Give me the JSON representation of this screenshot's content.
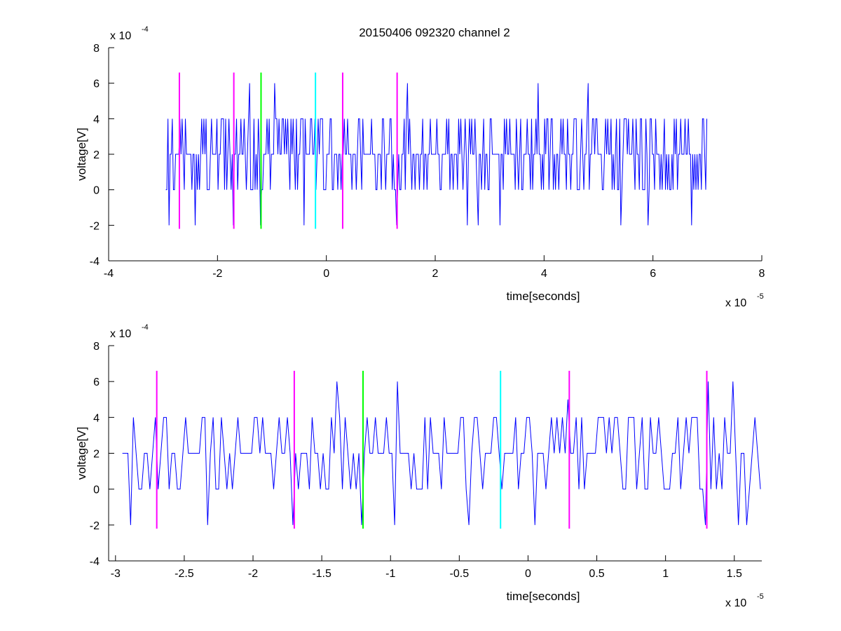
{
  "figure_title": "20150406 092320 channel 2",
  "colors": {
    "signal": "#0000ff",
    "magenta": "#ff00ff",
    "green": "#00ff00",
    "cyan": "#00ffff",
    "axis": "#000000",
    "background": "#ffffff"
  },
  "chart_data": [
    {
      "type": "line",
      "title": "20150406 092320 channel 2",
      "xlabel": "time[seconds]",
      "ylabel": "voltage[V]",
      "x_exponent": "x 10",
      "x_exponent_power": "-5",
      "y_exponent": "x 10",
      "y_exponent_power": "-4",
      "xlim": [
        -4,
        8
      ],
      "ylim": [
        -4,
        8
      ],
      "x_unit_scale": "1e-5",
      "y_unit_scale": "1e-4",
      "xticks": [
        "-4",
        "-2",
        "0",
        "2",
        "4",
        "6",
        "8"
      ],
      "yticks": [
        "-4",
        "-2",
        "0",
        "2",
        "4",
        "6",
        "8"
      ],
      "grid": false,
      "series": [
        {
          "x_range": [
            -2.95,
            7.0
          ],
          "sample_step": 0.02,
          "levels": [
            -2,
            0,
            2,
            4,
            6
          ],
          "typical_values": [
            0,
            2,
            4
          ],
          "spikes": [
            {
              "x": -2.9,
              "y": -2
            },
            {
              "x": -2.4,
              "y": -2
            },
            {
              "x": -1.7,
              "y": -2
            },
            {
              "x": -1.4,
              "y": 6
            },
            {
              "x": -1.2,
              "y": -2
            },
            {
              "x": -0.95,
              "y": 6
            },
            {
              "x": -0.4,
              "y": -2
            },
            {
              "x": 1.3,
              "y": 6
            },
            {
              "x": 1.3,
              "y": -2
            },
            {
              "x": 1.5,
              "y": 6
            },
            {
              "x": 2.6,
              "y": -2
            },
            {
              "x": 2.8,
              "y": -2
            },
            {
              "x": 3.2,
              "y": -2
            },
            {
              "x": 3.9,
              "y": 6
            },
            {
              "x": 4.8,
              "y": 6
            },
            {
              "x": 5.4,
              "y": -2
            },
            {
              "x": 5.9,
              "y": -2
            },
            {
              "x": 6.7,
              "y": -2
            }
          ]
        }
      ],
      "markers": [
        {
          "x": -2.7,
          "color": "magenta",
          "ymin": -2.2,
          "ymax": 6.6
        },
        {
          "x": -1.7,
          "color": "magenta",
          "ymin": -2.2,
          "ymax": 6.6
        },
        {
          "x": -1.2,
          "color": "green",
          "ymin": -2.2,
          "ymax": 6.6
        },
        {
          "x": -0.2,
          "color": "cyan",
          "ymin": -2.2,
          "ymax": 6.6
        },
        {
          "x": 0.3,
          "color": "magenta",
          "ymin": -2.2,
          "ymax": 6.6
        },
        {
          "x": 1.3,
          "color": "magenta",
          "ymin": -2.2,
          "ymax": 6.6
        }
      ]
    },
    {
      "type": "line",
      "title": "",
      "xlabel": "time[seconds]",
      "ylabel": "voltage[V]",
      "x_exponent": "x 10",
      "x_exponent_power": "-5",
      "y_exponent": "x 10",
      "y_exponent_power": "-4",
      "xlim": [
        -3.05,
        1.7
      ],
      "ylim": [
        -4,
        8
      ],
      "x_unit_scale": "1e-5",
      "y_unit_scale": "1e-4",
      "xticks": [
        "-3",
        "-2.5",
        "-2",
        "-1.5",
        "-1",
        "-0.5",
        "0",
        "0.5",
        "1",
        "1.5"
      ],
      "yticks": [
        "-4",
        "-2",
        "0",
        "2",
        "4",
        "6",
        "8"
      ],
      "grid": false,
      "series": [
        {
          "x_range": [
            -2.95,
            1.7
          ],
          "sample_step": 0.02,
          "levels": [
            -2,
            0,
            2,
            4,
            6
          ],
          "typical_values": [
            0,
            2,
            4
          ],
          "spikes": [
            {
              "x": -2.9,
              "y": -2
            },
            {
              "x": -2.33,
              "y": -2
            },
            {
              "x": -1.7,
              "y": -2
            },
            {
              "x": -1.38,
              "y": 6
            },
            {
              "x": -1.2,
              "y": -2
            },
            {
              "x": -0.97,
              "y": -2
            },
            {
              "x": -0.94,
              "y": 6
            },
            {
              "x": -0.43,
              "y": -2
            },
            {
              "x": 0.05,
              "y": -2
            },
            {
              "x": 0.3,
              "y": 5
            },
            {
              "x": 1.3,
              "y": -2
            },
            {
              "x": 1.32,
              "y": 6
            },
            {
              "x": 1.5,
              "y": 6
            },
            {
              "x": 1.54,
              "y": -2
            },
            {
              "x": 1.6,
              "y": -2
            }
          ]
        }
      ],
      "markers": [
        {
          "x": -2.7,
          "color": "magenta",
          "ymin": -2.2,
          "ymax": 6.6
        },
        {
          "x": -1.7,
          "color": "magenta",
          "ymin": -2.2,
          "ymax": 6.6
        },
        {
          "x": -1.2,
          "color": "green",
          "ymin": -2.2,
          "ymax": 6.6
        },
        {
          "x": -0.2,
          "color": "cyan",
          "ymin": -2.2,
          "ymax": 6.6
        },
        {
          "x": 0.3,
          "color": "magenta",
          "ymin": -2.2,
          "ymax": 6.6
        },
        {
          "x": 1.3,
          "color": "magenta",
          "ymin": -2.2,
          "ymax": 6.6
        }
      ]
    }
  ]
}
